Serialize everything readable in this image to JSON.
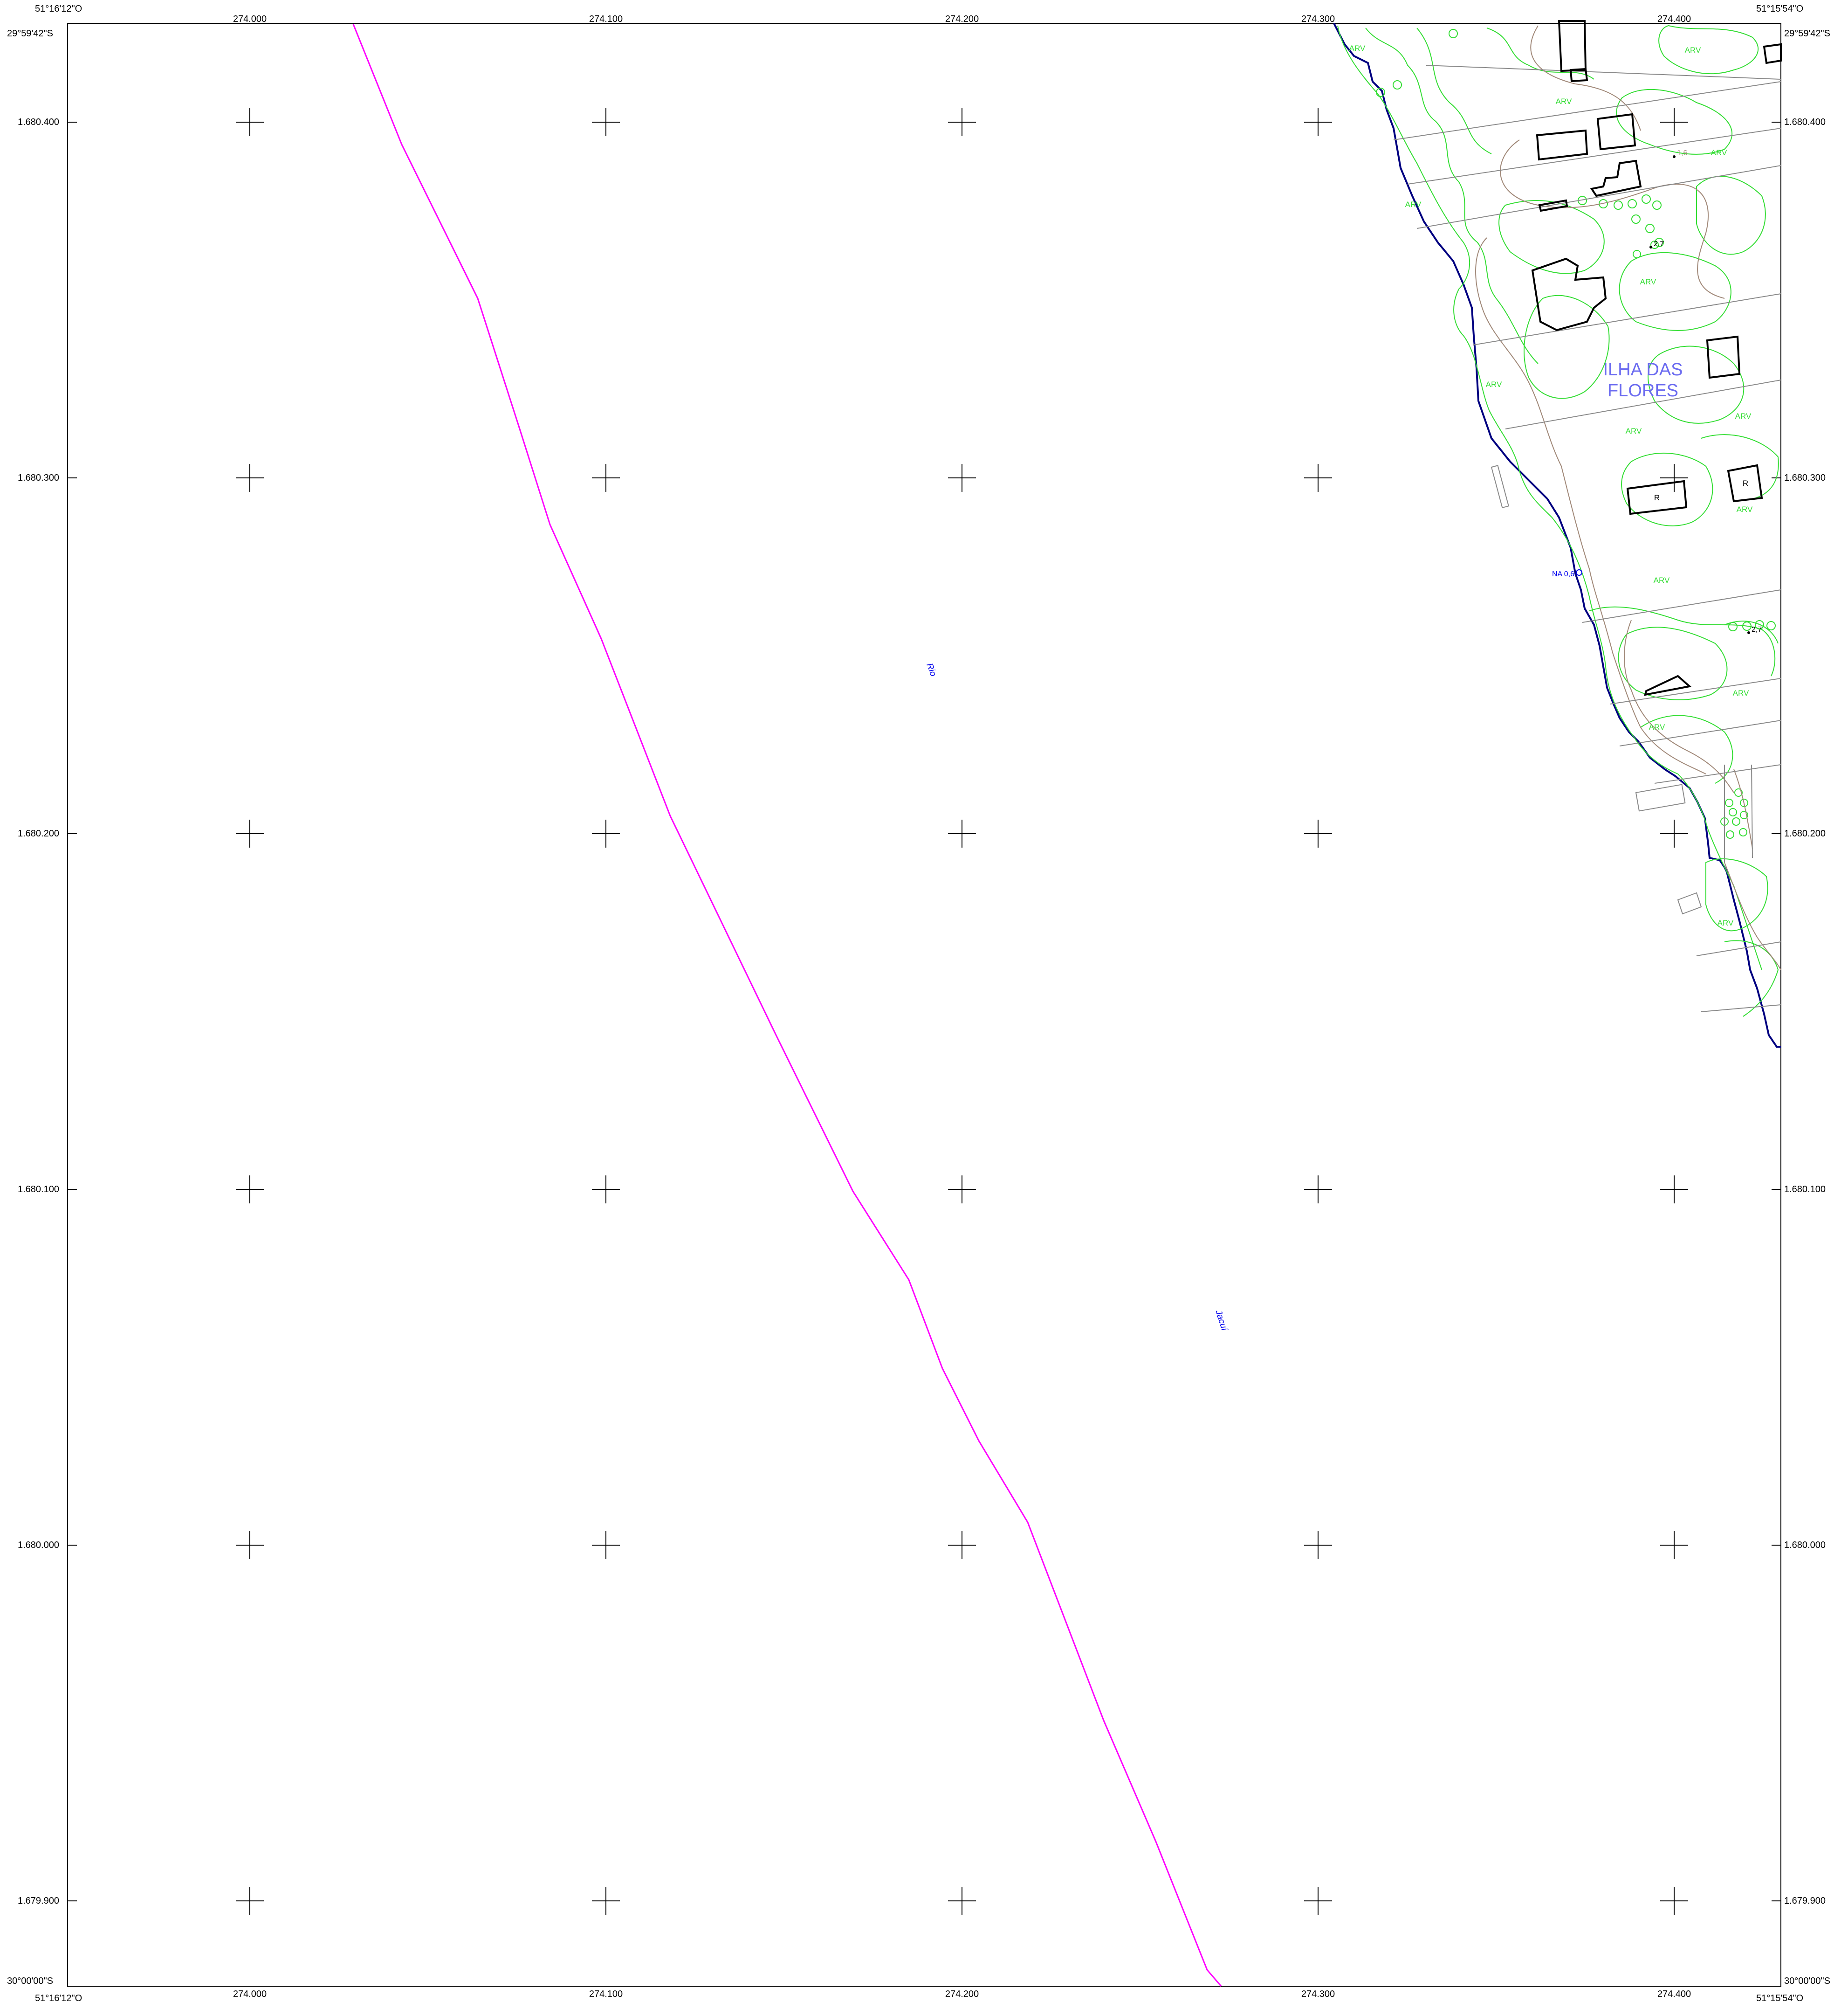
{
  "corners": {
    "top_left_lon": "51°16'12\"O",
    "top_left_lat": "29°59'42\"S",
    "top_right_lon": "51°15'54\"O",
    "top_right_lat": "29°59'42\"S",
    "bottom_left_lon": "51°16'12\"O",
    "bottom_left_lat": "30°00'00\"S",
    "bottom_right_lon": "51°15'54\"O",
    "bottom_right_lat": "30°00'00\"S"
  },
  "easting_labels": [
    "274.000",
    "274.100",
    "274.200",
    "274.300",
    "274.400"
  ],
  "northing_labels": [
    "1.680.400",
    "1.680.300",
    "1.680.200",
    "1.680.100",
    "1.680.000",
    "1.679.900"
  ],
  "place_name_line1": "ILHA DAS",
  "place_name_line2": "FLORES",
  "river_label_1": "Rio",
  "river_label_2": "Jacuí",
  "vegetation_label": "ARV",
  "building_label": "R",
  "water_level_label": "NA 0,6",
  "spot_heights": [
    "1,6",
    "2,7",
    "2,7"
  ],
  "colors": {
    "vegetation": "#33dd33",
    "contour": "#a08878",
    "boundary": "#ff00ff",
    "shoreline": "#000080",
    "text_blue": "#0000ee",
    "place_name": "#6b6bf0"
  }
}
